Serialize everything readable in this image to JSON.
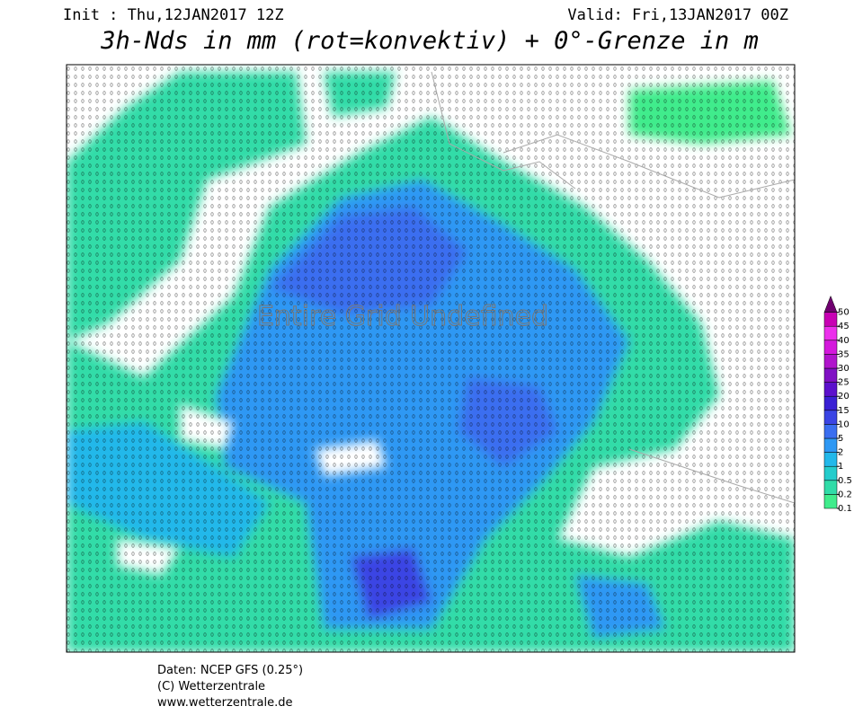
{
  "header": {
    "init": "Init : Thu,12JAN2017 12Z",
    "valid": "Valid: Fri,13JAN2017 00Z",
    "title": "3h-Nds in mm (rot=konvektiv) + 0°-Grenze in m"
  },
  "map": {
    "overlay": "Entire Grid Undefined"
  },
  "legend": {
    "ticks": [
      0.1,
      0.2,
      0.5,
      1,
      2,
      5,
      10,
      15,
      20,
      25,
      30,
      35,
      40,
      45,
      50
    ],
    "colors": [
      "#40ec8c",
      "#30dca8",
      "#24cccc",
      "#22b8ea",
      "#2e98f4",
      "#3a6ef0",
      "#3a44e4",
      "#3a20d4",
      "#5c10cc",
      "#8010c4",
      "#b014cc",
      "#d418dc",
      "#ec30ec",
      "#c800b4"
    ],
    "arrow_color": "#700070"
  },
  "footer": {
    "lines": [
      "Daten: NCEP GFS (0.25°)",
      "(C) Wetterzentrale",
      "www.wetterzentrale.de"
    ]
  }
}
